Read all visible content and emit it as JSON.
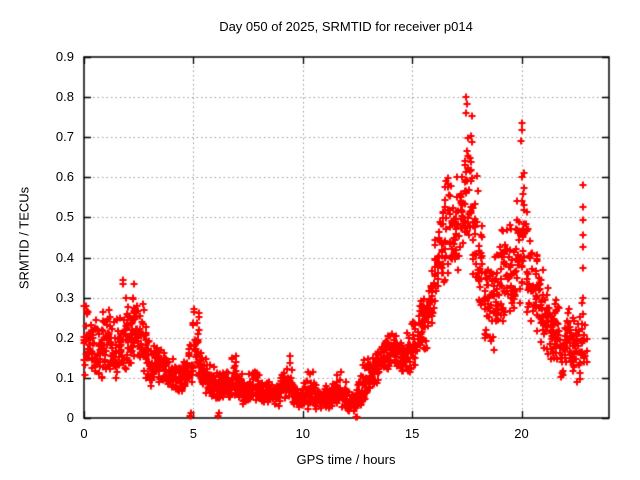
{
  "figure": {
    "background": "#ffffff",
    "text_color": "#000000"
  },
  "chart_data": {
    "type": "scatter",
    "title": "Day 050 of 2025, SRMTID for receiver p014",
    "xlabel": "GPS time / hours",
    "ylabel": "SRMTID / TECUs",
    "xlim": [
      0,
      24
    ],
    "ylim": [
      0,
      0.9
    ],
    "xticks": [
      0,
      5,
      10,
      15,
      20
    ],
    "yticks": [
      0,
      0.1,
      0.2,
      0.3,
      0.4,
      0.5,
      0.6,
      0.7,
      0.8,
      0.9
    ],
    "grid": true,
    "legend": "none",
    "marker": {
      "glyph": "plus",
      "color": "#ff0000",
      "size": 7,
      "stroke": 2
    },
    "axis_color": "#000000",
    "grid_color": "#9b9b9b",
    "seed": 20250050,
    "bin_width": 0.25,
    "bins_comment": "each bin = [x_start_hours, y_min_TECUs, y_max_TECUs, density_mode_0to1, n_points] estimated from plot",
    "bins": [
      [
        0.0,
        0.09,
        0.31,
        0.35,
        22
      ],
      [
        0.25,
        0.1,
        0.3,
        0.4,
        22
      ],
      [
        0.5,
        0.09,
        0.27,
        0.4,
        22
      ],
      [
        0.75,
        0.08,
        0.28,
        0.4,
        22
      ],
      [
        1.0,
        0.1,
        0.3,
        0.45,
        22
      ],
      [
        1.25,
        0.07,
        0.28,
        0.4,
        22
      ],
      [
        1.5,
        0.1,
        0.3,
        0.45,
        22
      ],
      [
        1.75,
        0.1,
        0.32,
        0.45,
        22
      ],
      [
        2.0,
        0.12,
        0.31,
        0.5,
        22
      ],
      [
        2.25,
        0.13,
        0.33,
        0.55,
        24
      ],
      [
        2.5,
        0.12,
        0.3,
        0.5,
        22
      ],
      [
        2.75,
        0.08,
        0.26,
        0.4,
        22
      ],
      [
        3.0,
        0.06,
        0.2,
        0.4,
        22
      ],
      [
        3.25,
        0.08,
        0.2,
        0.45,
        22
      ],
      [
        3.5,
        0.08,
        0.19,
        0.45,
        22
      ],
      [
        3.75,
        0.07,
        0.17,
        0.4,
        22
      ],
      [
        4.0,
        0.06,
        0.15,
        0.4,
        22
      ],
      [
        4.25,
        0.06,
        0.14,
        0.4,
        22
      ],
      [
        4.5,
        0.07,
        0.16,
        0.45,
        22
      ],
      [
        4.75,
        0.08,
        0.2,
        0.5,
        22
      ],
      [
        5.0,
        0.1,
        0.27,
        0.5,
        24
      ],
      [
        5.25,
        0.08,
        0.18,
        0.4,
        22
      ],
      [
        5.5,
        0.06,
        0.15,
        0.35,
        22
      ],
      [
        5.75,
        0.05,
        0.13,
        0.35,
        22
      ],
      [
        6.0,
        0.04,
        0.12,
        0.35,
        22
      ],
      [
        6.25,
        0.04,
        0.12,
        0.35,
        22
      ],
      [
        6.5,
        0.04,
        0.14,
        0.4,
        22
      ],
      [
        6.75,
        0.05,
        0.16,
        0.45,
        22
      ],
      [
        7.0,
        0.04,
        0.12,
        0.35,
        22
      ],
      [
        7.25,
        0.03,
        0.1,
        0.35,
        22
      ],
      [
        7.5,
        0.04,
        0.12,
        0.4,
        22
      ],
      [
        7.75,
        0.04,
        0.13,
        0.4,
        22
      ],
      [
        8.0,
        0.03,
        0.1,
        0.35,
        22
      ],
      [
        8.25,
        0.03,
        0.1,
        0.4,
        22
      ],
      [
        8.5,
        0.02,
        0.09,
        0.35,
        22
      ],
      [
        8.75,
        0.03,
        0.1,
        0.4,
        22
      ],
      [
        9.0,
        0.03,
        0.12,
        0.4,
        22
      ],
      [
        9.25,
        0.04,
        0.15,
        0.45,
        22
      ],
      [
        9.5,
        0.03,
        0.1,
        0.35,
        22
      ],
      [
        9.75,
        0.02,
        0.09,
        0.35,
        22
      ],
      [
        10.0,
        0.02,
        0.1,
        0.35,
        22
      ],
      [
        10.25,
        0.03,
        0.12,
        0.4,
        22
      ],
      [
        10.5,
        0.02,
        0.09,
        0.35,
        22
      ],
      [
        10.75,
        0.02,
        0.08,
        0.35,
        22
      ],
      [
        11.0,
        0.02,
        0.09,
        0.35,
        22
      ],
      [
        11.25,
        0.02,
        0.1,
        0.4,
        22
      ],
      [
        11.5,
        0.03,
        0.12,
        0.4,
        22
      ],
      [
        11.75,
        0.02,
        0.1,
        0.35,
        22
      ],
      [
        12.0,
        0.01,
        0.08,
        0.35,
        22
      ],
      [
        12.25,
        0.01,
        0.08,
        0.35,
        22
      ],
      [
        12.5,
        0.02,
        0.12,
        0.4,
        22
      ],
      [
        12.75,
        0.04,
        0.17,
        0.45,
        22
      ],
      [
        13.0,
        0.06,
        0.16,
        0.45,
        22
      ],
      [
        13.25,
        0.08,
        0.18,
        0.5,
        22
      ],
      [
        13.5,
        0.1,
        0.2,
        0.5,
        22
      ],
      [
        13.75,
        0.11,
        0.22,
        0.5,
        22
      ],
      [
        14.0,
        0.12,
        0.22,
        0.5,
        22
      ],
      [
        14.25,
        0.12,
        0.21,
        0.5,
        22
      ],
      [
        14.5,
        0.1,
        0.2,
        0.45,
        22
      ],
      [
        14.75,
        0.1,
        0.24,
        0.45,
        22
      ],
      [
        15.0,
        0.12,
        0.26,
        0.5,
        22
      ],
      [
        15.25,
        0.14,
        0.3,
        0.5,
        22
      ],
      [
        15.5,
        0.15,
        0.33,
        0.5,
        22
      ],
      [
        15.75,
        0.2,
        0.4,
        0.5,
        22
      ],
      [
        16.0,
        0.25,
        0.47,
        0.5,
        22
      ],
      [
        16.25,
        0.28,
        0.55,
        0.5,
        22
      ],
      [
        16.5,
        0.3,
        0.66,
        0.45,
        24
      ],
      [
        16.75,
        0.32,
        0.58,
        0.45,
        22
      ],
      [
        17.0,
        0.35,
        0.62,
        0.45,
        22
      ],
      [
        17.25,
        0.38,
        0.73,
        0.45,
        26
      ],
      [
        17.5,
        0.4,
        0.78,
        0.4,
        26
      ],
      [
        17.75,
        0.32,
        0.62,
        0.4,
        22
      ],
      [
        18.0,
        0.25,
        0.52,
        0.4,
        22
      ],
      [
        18.25,
        0.18,
        0.45,
        0.38,
        22
      ],
      [
        18.5,
        0.16,
        0.42,
        0.38,
        22
      ],
      [
        18.75,
        0.2,
        0.48,
        0.4,
        22
      ],
      [
        19.0,
        0.22,
        0.5,
        0.4,
        22
      ],
      [
        19.25,
        0.25,
        0.5,
        0.45,
        22
      ],
      [
        19.5,
        0.2,
        0.45,
        0.4,
        22
      ],
      [
        19.75,
        0.25,
        0.55,
        0.4,
        22
      ],
      [
        20.0,
        0.28,
        0.7,
        0.32,
        24
      ],
      [
        20.25,
        0.22,
        0.48,
        0.4,
        22
      ],
      [
        20.5,
        0.2,
        0.42,
        0.4,
        22
      ],
      [
        20.75,
        0.18,
        0.4,
        0.4,
        22
      ],
      [
        21.0,
        0.15,
        0.35,
        0.4,
        22
      ],
      [
        21.25,
        0.13,
        0.32,
        0.4,
        22
      ],
      [
        21.5,
        0.12,
        0.3,
        0.4,
        22
      ],
      [
        21.75,
        0.1,
        0.28,
        0.4,
        22
      ],
      [
        22.0,
        0.12,
        0.3,
        0.4,
        22
      ],
      [
        22.25,
        0.1,
        0.28,
        0.4,
        22
      ],
      [
        22.5,
        0.08,
        0.26,
        0.45,
        20
      ],
      [
        22.75,
        0.1,
        0.3,
        0.45,
        14
      ]
    ],
    "outliers_comment": "isolated distinct points read directly off the plot [x_hours, y_TECUs]",
    "outliers": [
      [
        1.78,
        0.335
      ],
      [
        1.8,
        0.345
      ],
      [
        2.3,
        0.335
      ],
      [
        4.85,
        0.005
      ],
      [
        4.88,
        0.012
      ],
      [
        4.91,
        0.005
      ],
      [
        5.02,
        0.265
      ],
      [
        5.04,
        0.272
      ],
      [
        6.12,
        0.006
      ],
      [
        6.15,
        0.012
      ],
      [
        9.4,
        0.155
      ],
      [
        12.42,
        0.002
      ],
      [
        12.5,
        0.002
      ],
      [
        17.48,
        0.8
      ],
      [
        17.52,
        0.782
      ],
      [
        17.44,
        0.76
      ],
      [
        20.0,
        0.735
      ],
      [
        20.04,
        0.718
      ],
      [
        19.97,
        0.69
      ],
      [
        22.8,
        0.58
      ],
      [
        22.82,
        0.527
      ],
      [
        22.79,
        0.494
      ],
      [
        22.83,
        0.455
      ],
      [
        22.8,
        0.427
      ],
      [
        22.81,
        0.374
      ],
      [
        22.8,
        0.3
      ],
      [
        22.84,
        0.15
      ]
    ]
  }
}
